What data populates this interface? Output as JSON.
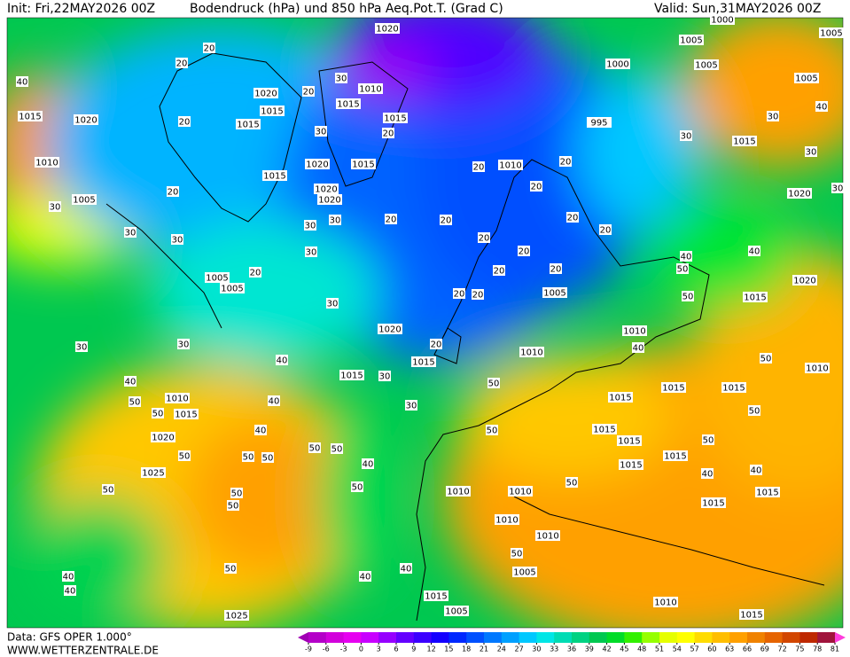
{
  "header": {
    "init": "Init: Fri,22MAY2026 00Z",
    "title": "Bodendruck (hPa) und 850 hPa Aeq.Pot.T. (Grad C)",
    "valid": "Valid: Sun,31MAY2026 00Z"
  },
  "footer": {
    "data": "Data: GFS OPER 1.000°",
    "site": "WWW.WETTERZENTRALE.DE"
  },
  "colorbar": {
    "ticks": [
      -9,
      -6,
      -3,
      0,
      3,
      6,
      9,
      12,
      15,
      18,
      21,
      24,
      27,
      30,
      33,
      36,
      39,
      42,
      45,
      48,
      51,
      54,
      57,
      60,
      63,
      66,
      69,
      72,
      75,
      78,
      81
    ],
    "colors": [
      "#a000b4",
      "#b400c8",
      "#d200dc",
      "#e600f0",
      "#c800ff",
      "#9600ff",
      "#6400ff",
      "#3c00ff",
      "#1400ff",
      "#0028ff",
      "#0050ff",
      "#0078ff",
      "#00a0ff",
      "#00c8ff",
      "#00e6e6",
      "#00dcb4",
      "#00d282",
      "#00c850",
      "#00dc28",
      "#32f000",
      "#96ff00",
      "#e6ff00",
      "#ffff00",
      "#ffdc00",
      "#ffbe00",
      "#ffa000",
      "#f08200",
      "#e66400",
      "#d24600",
      "#be2800",
      "#a0143c",
      "#ff3cdc"
    ]
  },
  "isobar_labels": [
    "1020",
    "1000",
    "1005",
    "1005",
    "1005",
    "1000",
    "1005",
    "995",
    "1015",
    "1020",
    "1010",
    "1005",
    "1010",
    "1010",
    "1015",
    "1020",
    "1015",
    "1015",
    "1020",
    "1010",
    "1005",
    "1005",
    "1005",
    "1010",
    "1015",
    "1020",
    "1025",
    "1025",
    "1015",
    "1015",
    "1015",
    "1015",
    "1015",
    "1015",
    "1015",
    "1015",
    "1015",
    "1010",
    "1010",
    "1010",
    "1010",
    "1005",
    "1015",
    "1005",
    "1010",
    "1015",
    "1010",
    "1015",
    "1020",
    "1020",
    "1015",
    "1015",
    "1010",
    "1015",
    "1015",
    "1020",
    "1015",
    "1020",
    "1020",
    "1015"
  ],
  "theta_labels": [
    "20",
    "20",
    "40",
    "20",
    "20",
    "30",
    "30",
    "20",
    "20",
    "20",
    "20",
    "20",
    "20",
    "20",
    "20",
    "20",
    "20",
    "20",
    "20",
    "20",
    "20",
    "20",
    "20",
    "30",
    "30",
    "30",
    "30",
    "30",
    "30",
    "20",
    "30",
    "30",
    "30",
    "40",
    "30",
    "30",
    "40",
    "50",
    "50",
    "40",
    "40",
    "50",
    "50",
    "50",
    "50",
    "50",
    "40",
    "50",
    "50",
    "50",
    "50",
    "50",
    "40",
    "40",
    "40",
    "40",
    "50",
    "50",
    "50",
    "50",
    "50",
    "50",
    "40",
    "50",
    "40",
    "40",
    "50",
    "50",
    "40",
    "40",
    "30",
    "30",
    "30",
    "30",
    "40"
  ]
}
